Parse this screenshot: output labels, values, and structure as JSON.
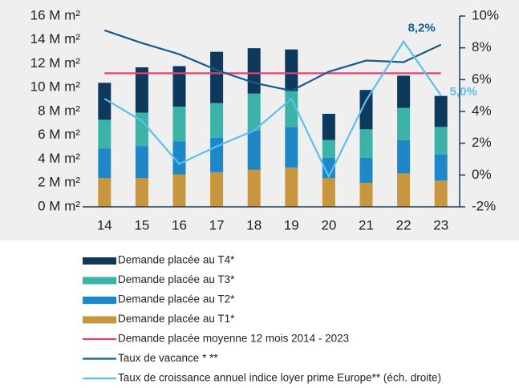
{
  "chart_data": {
    "type": "bar",
    "stacked": true,
    "categories": [
      "14",
      "15",
      "16",
      "17",
      "18",
      "19",
      "20",
      "21",
      "22",
      "23"
    ],
    "ylim": [
      0,
      16
    ],
    "yticks": [
      {
        "value": 0,
        "label": "0 M m²"
      },
      {
        "value": 2,
        "label": "2 M m²"
      },
      {
        "value": 4,
        "label": "4 M m²"
      },
      {
        "value": 6,
        "label": "6 M m²"
      },
      {
        "value": 8,
        "label": "8 M m²"
      },
      {
        "value": 10,
        "label": "10 M m²"
      },
      {
        "value": 12,
        "label": "12 M m²"
      },
      {
        "value": 14,
        "label": "14 M m²"
      },
      {
        "value": 16,
        "label": "16 M m²"
      }
    ],
    "y2lim": [
      -2,
      10
    ],
    "y2ticks": [
      {
        "value": -2,
        "label": "-2%"
      },
      {
        "value": 0,
        "label": "0%"
      },
      {
        "value": 2,
        "label": "2%"
      },
      {
        "value": 4,
        "label": "4%"
      },
      {
        "value": 6,
        "label": "6%"
      },
      {
        "value": 8,
        "label": "8%"
      },
      {
        "value": 10,
        "label": "10%"
      }
    ],
    "series": [
      {
        "name": "Demande placée au T1*",
        "type": "bar",
        "color": "#c8963e",
        "values": [
          2.4,
          2.4,
          2.7,
          2.9,
          3.1,
          3.3,
          2.4,
          2.0,
          2.8,
          2.2
        ]
      },
      {
        "name": "Demande placée au T2*",
        "type": "bar",
        "color": "#1f86c8",
        "values": [
          2.5,
          2.7,
          2.8,
          2.9,
          3.3,
          3.4,
          1.7,
          2.1,
          2.8,
          2.2
        ]
      },
      {
        "name": "Demande placée au T3*",
        "type": "bar",
        "color": "#3bb3a8",
        "values": [
          2.4,
          2.8,
          2.9,
          2.9,
          3.1,
          3.0,
          1.5,
          2.4,
          2.7,
          2.3
        ]
      },
      {
        "name": "Demande placée au T4*",
        "type": "bar",
        "color": "#0d3a5c",
        "values": [
          3.1,
          3.8,
          3.4,
          4.3,
          3.8,
          3.5,
          2.2,
          3.3,
          2.7,
          2.6
        ]
      },
      {
        "name": "Demande placée moyenne 12 mois 2014 - 2023",
        "type": "line",
        "color": "#e0436b",
        "values": [
          11.2,
          11.2,
          11.2,
          11.2,
          11.2,
          11.2,
          11.2,
          11.2,
          11.2,
          11.2
        ]
      },
      {
        "name": "Taux de vacance * **",
        "type": "line",
        "axis": "y2",
        "color": "#1a5a8a",
        "values": [
          9.1,
          8.3,
          7.6,
          6.6,
          5.8,
          5.3,
          6.5,
          7.2,
          7.1,
          8.2
        ],
        "value_labels": [
          null,
          null,
          null,
          null,
          null,
          null,
          null,
          null,
          null,
          "8,2%"
        ]
      },
      {
        "name": "Taux de croissance annuel indice loyer prime Europe** (éch. droite)",
        "type": "line",
        "axis": "y2",
        "color": "#5bc0eb",
        "values": [
          4.8,
          3.4,
          0.7,
          1.8,
          2.8,
          4.8,
          -0.1,
          4.7,
          8.4,
          5.0
        ],
        "value_labels": [
          null,
          null,
          null,
          null,
          null,
          null,
          null,
          null,
          null,
          "5,0%"
        ]
      }
    ]
  }
}
